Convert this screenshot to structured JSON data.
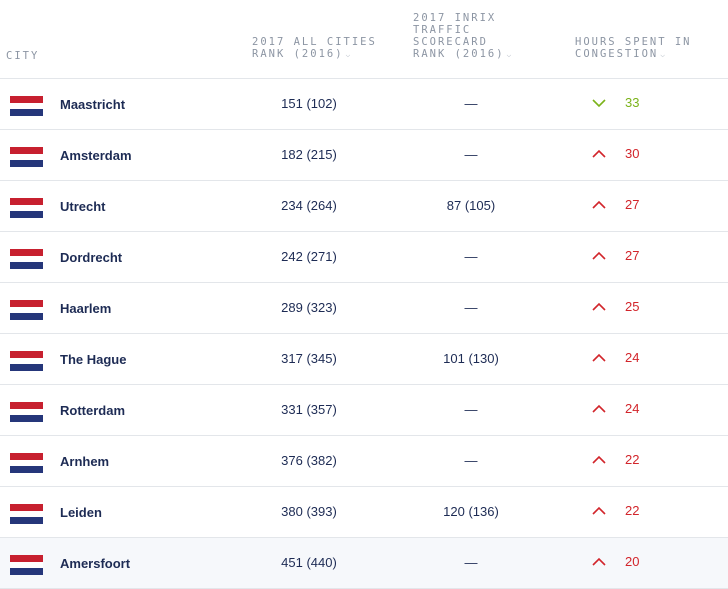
{
  "header": {
    "city": "CITY",
    "rank_line1": "2017 ALL CITIES",
    "rank_line2": "RANK (2016)",
    "inrix_line1": "2017 INRIX",
    "inrix_line2": "TRAFFIC",
    "inrix_line3": "SCORECARD",
    "inrix_line4": "RANK (2016)",
    "hours_line1": "HOURS SPENT IN",
    "hours_line2": "CONGESTION",
    "sort_glyph": "⌵"
  },
  "colors": {
    "up": "#d2252b",
    "down": "#7bb31a",
    "text": "#1d2b54",
    "header": "#8c95a3"
  },
  "rows": [
    {
      "city": "Maastricht",
      "rank": "151 (102)",
      "inrix": "—",
      "hours": "33",
      "trend": "down",
      "flag": "netherlands-flag-icon"
    },
    {
      "city": "Amsterdam",
      "rank": "182 (215)",
      "inrix": "—",
      "hours": "30",
      "trend": "up",
      "flag": "netherlands-flag-icon"
    },
    {
      "city": "Utrecht",
      "rank": "234 (264)",
      "inrix": "87 (105)",
      "hours": "27",
      "trend": "up",
      "flag": "netherlands-flag-icon"
    },
    {
      "city": "Dordrecht",
      "rank": "242 (271)",
      "inrix": "—",
      "hours": "27",
      "trend": "up",
      "flag": "netherlands-flag-icon"
    },
    {
      "city": "Haarlem",
      "rank": "289 (323)",
      "inrix": "—",
      "hours": "25",
      "trend": "up",
      "flag": "netherlands-flag-icon"
    },
    {
      "city": "The Hague",
      "rank": "317 (345)",
      "inrix": "101 (130)",
      "hours": "24",
      "trend": "up",
      "flag": "netherlands-flag-icon"
    },
    {
      "city": "Rotterdam",
      "rank": "331 (357)",
      "inrix": "—",
      "hours": "24",
      "trend": "up",
      "flag": "netherlands-flag-icon"
    },
    {
      "city": "Arnhem",
      "rank": "376 (382)",
      "inrix": "—",
      "hours": "22",
      "trend": "up",
      "flag": "netherlands-flag-icon"
    },
    {
      "city": "Leiden",
      "rank": "380 (393)",
      "inrix": "120 (136)",
      "hours": "22",
      "trend": "up",
      "flag": "netherlands-flag-icon"
    },
    {
      "city": "Amersfoort",
      "rank": "451 (440)",
      "inrix": "—",
      "hours": "20",
      "trend": "up",
      "flag": "netherlands-flag-icon"
    }
  ]
}
